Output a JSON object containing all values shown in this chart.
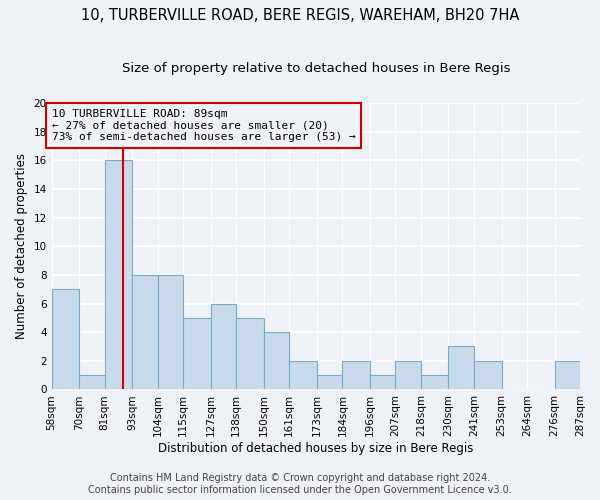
{
  "title": "10, TURBERVILLE ROAD, BERE REGIS, WAREHAM, BH20 7HA",
  "subtitle": "Size of property relative to detached houses in Bere Regis",
  "xlabel": "Distribution of detached houses by size in Bere Regis",
  "ylabel": "Number of detached properties",
  "bar_color": "#c9daea",
  "bar_edge_color": "#7aaac8",
  "vline_x": 89,
  "vline_color": "#cc0000",
  "annotation_text": "10 TURBERVILLE ROAD: 89sqm\n← 27% of detached houses are smaller (20)\n73% of semi-detached houses are larger (53) →",
  "annotation_box_color": "#cc0000",
  "bins": [
    58,
    70,
    81,
    93,
    104,
    115,
    127,
    138,
    150,
    161,
    173,
    184,
    196,
    207,
    218,
    230,
    241,
    253,
    264,
    276,
    287
  ],
  "bar_heights": [
    7,
    1,
    16,
    8,
    8,
    5,
    6,
    5,
    4,
    2,
    1,
    2,
    1,
    2,
    1,
    3,
    2,
    0,
    0,
    2
  ],
  "ylim": [
    0,
    20
  ],
  "yticks": [
    0,
    2,
    4,
    6,
    8,
    10,
    12,
    14,
    16,
    18,
    20
  ],
  "footer_line1": "Contains HM Land Registry data © Crown copyright and database right 2024.",
  "footer_line2": "Contains public sector information licensed under the Open Government Licence v3.0.",
  "background_color": "#eef2f7",
  "grid_color": "#ffffff",
  "tick_label_fontsize": 7.5,
  "title_fontsize": 10.5,
  "subtitle_fontsize": 9.5,
  "xlabel_fontsize": 8.5,
  "ylabel_fontsize": 8.5,
  "footer_fontsize": 7.0,
  "annotation_fontsize": 8.0
}
